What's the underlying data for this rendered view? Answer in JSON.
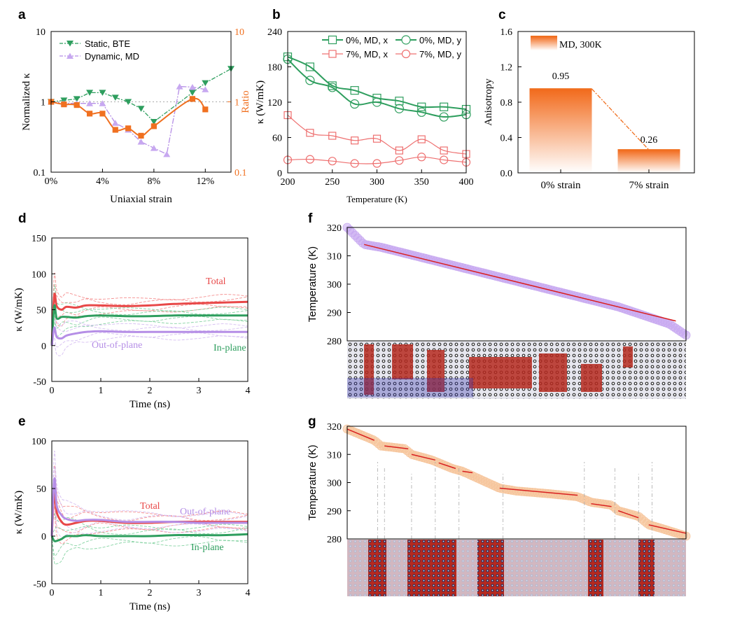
{
  "colors": {
    "green": "#2e9e5e",
    "orange": "#f07020",
    "purple": "#b58ee6",
    "red": "#e84848",
    "pink": "#ee7070",
    "lavender": "#c7a8f0",
    "peach": "#f6c49a",
    "darkred": "#d82020"
  },
  "chart_data": [
    {
      "panel": "a",
      "type": "line",
      "xlabel": "Uniaxial strain",
      "ylabel": "Normalized κ",
      "y2label": "Ratio",
      "xlim": [
        0,
        14
      ],
      "ylim": [
        0.1,
        10
      ],
      "y2lim": [
        0.1,
        10
      ],
      "yscale": "log",
      "x_ticks": [
        "0%",
        "4%",
        "8%",
        "12%"
      ],
      "y_ticks": [
        "0.1",
        "1",
        "10"
      ],
      "y2_ticks": [
        "0.1",
        "1",
        "10"
      ],
      "legend_position": "top-left",
      "series": [
        {
          "name": "Static, BTE",
          "x": [
            0,
            1,
            2,
            3,
            4,
            5,
            6,
            7,
            8,
            11,
            12,
            14
          ],
          "y": [
            1.0,
            1.05,
            1.1,
            1.35,
            1.35,
            1.15,
            1.0,
            0.8,
            0.52,
            1.35,
            1.85,
            2.95
          ]
        },
        {
          "name": "Dynamic, MD",
          "x": [
            0,
            1,
            2,
            3,
            4,
            5,
            6,
            7,
            8,
            9,
            10,
            11,
            12
          ],
          "y": [
            1.0,
            0.95,
            0.95,
            0.95,
            0.95,
            0.5,
            0.4,
            0.27,
            0.22,
            0.18,
            1.65,
            1.62,
            1.5
          ]
        },
        {
          "name": "Ratio",
          "x": [
            0,
            1,
            2,
            3,
            4,
            5,
            6,
            7,
            8,
            11,
            12
          ],
          "y": [
            1.0,
            0.92,
            0.9,
            0.68,
            0.68,
            0.4,
            0.42,
            0.33,
            0.45,
            1.1,
            0.78
          ]
        }
      ]
    },
    {
      "panel": "b",
      "type": "line",
      "xlabel": "Temperature (K)",
      "ylabel": "κ (W/mK)",
      "xlim": [
        200,
        400
      ],
      "ylim": [
        0,
        240
      ],
      "x_ticks": [
        "200",
        "250",
        "300",
        "350",
        "400"
      ],
      "y_ticks": [
        "0",
        "60",
        "120",
        "180",
        "240"
      ],
      "legend_position": "top-right",
      "x": [
        200,
        225,
        250,
        275,
        300,
        325,
        350,
        375,
        400
      ],
      "series": [
        {
          "name": "0%, MD, x",
          "y": [
            197,
            180,
            148,
            140,
            127,
            122,
            112,
            112,
            108
          ]
        },
        {
          "name": "0%, MD, y",
          "y": [
            193,
            157,
            145,
            117,
            120,
            109,
            103,
            95,
            99
          ]
        },
        {
          "name": "7%, MD, x",
          "y": [
            98,
            68,
            63,
            55,
            58,
            38,
            57,
            38,
            32
          ]
        },
        {
          "name": "7%, MD, y",
          "y": [
            22,
            23,
            20,
            16,
            16,
            21,
            27,
            22,
            18
          ]
        }
      ]
    },
    {
      "panel": "c",
      "type": "bar",
      "ylabel": "Anisotropy",
      "ylim": [
        0,
        1.6
      ],
      "y_ticks": [
        "0.0",
        "0.4",
        "0.8",
        "1.2",
        "1.6"
      ],
      "categories": [
        "0% strain",
        "7% strain"
      ],
      "values": [
        0.95,
        0.26
      ],
      "value_labels": [
        "0.95",
        "0.26"
      ],
      "legend": "MD, 300K",
      "legend_position": "top-left"
    },
    {
      "panel": "d",
      "type": "line",
      "xlabel": "Time (ns)",
      "ylabel": "κ (W/mK)",
      "xlim": [
        0,
        4
      ],
      "ylim": [
        -50,
        150
      ],
      "x_ticks": [
        "0",
        "1",
        "2",
        "3",
        "4"
      ],
      "y_ticks": [
        "-50",
        "0",
        "50",
        "100",
        "150"
      ],
      "annotations": [
        "Total",
        "Out-of-plane",
        "In-plane"
      ],
      "series": [
        {
          "name": "Total",
          "x": [
            0,
            0.05,
            0.1,
            0.2,
            0.3,
            0.5,
            0.7,
            1,
            1.5,
            2,
            2.5,
            3,
            3.5,
            4
          ],
          "y": [
            0,
            70,
            55,
            50,
            54,
            53,
            56,
            56,
            55,
            56,
            58,
            59,
            60,
            61
          ]
        },
        {
          "name": "In-plane",
          "x": [
            0,
            0.05,
            0.1,
            0.2,
            0.3,
            0.5,
            0.7,
            1,
            1.5,
            2,
            2.5,
            3,
            3.5,
            4
          ],
          "y": [
            0,
            55,
            38,
            40,
            40,
            39,
            41,
            42,
            41,
            41,
            42,
            42,
            42,
            42
          ]
        },
        {
          "name": "Out-of-plane",
          "x": [
            0,
            0.05,
            0.1,
            0.2,
            0.3,
            0.5,
            0.7,
            1,
            1.5,
            2,
            2.5,
            3,
            3.5,
            4
          ],
          "y": [
            0,
            25,
            12,
            10,
            14,
            17,
            19,
            20,
            19,
            19,
            19,
            19,
            19,
            19
          ]
        }
      ]
    },
    {
      "panel": "e",
      "type": "line",
      "xlabel": "Time (ns)",
      "ylabel": "κ (W/mK)",
      "xlim": [
        0,
        4
      ],
      "ylim": [
        -50,
        100
      ],
      "x_ticks": [
        "0",
        "1",
        "2",
        "3",
        "4"
      ],
      "y_ticks": [
        "-50",
        "0",
        "50",
        "100"
      ],
      "annotations": [
        "Total",
        "Out-of-plane",
        "In-plane"
      ],
      "series": [
        {
          "name": "Total",
          "x": [
            0,
            0.05,
            0.1,
            0.2,
            0.3,
            0.5,
            0.7,
            1,
            1.5,
            2,
            2.5,
            3,
            3.5,
            4
          ],
          "y": [
            0,
            45,
            25,
            15,
            12,
            14,
            16,
            16,
            14,
            14,
            15,
            15,
            15,
            15
          ]
        },
        {
          "name": "Out-of-plane",
          "x": [
            0,
            0.05,
            0.1,
            0.2,
            0.3,
            0.5,
            0.7,
            1,
            1.5,
            2,
            2.5,
            3,
            3.5,
            4
          ],
          "y": [
            0,
            60,
            32,
            22,
            18,
            16,
            17,
            17,
            15,
            15,
            15,
            14,
            14,
            14
          ]
        },
        {
          "name": "In-plane",
          "x": [
            0,
            0.05,
            0.1,
            0.2,
            0.3,
            0.5,
            0.7,
            1,
            1.5,
            2,
            2.5,
            3,
            3.5,
            4
          ],
          "y": [
            0,
            -5,
            -5,
            -3,
            0,
            0,
            1,
            0,
            0,
            0,
            1,
            1,
            1,
            2
          ]
        }
      ]
    },
    {
      "panel": "f",
      "type": "scatter",
      "ylabel": "Temperature (K)",
      "ylim": [
        280,
        320
      ],
      "y_ticks": [
        "280",
        "290",
        "300",
        "310",
        "320"
      ],
      "x": [
        0,
        0.05,
        0.1,
        0.2,
        0.3,
        0.4,
        0.5,
        0.6,
        0.7,
        0.8,
        0.9,
        0.95,
        1.0
      ],
      "y": [
        320,
        314,
        313,
        310,
        307,
        304,
        301,
        298,
        295,
        292,
        288,
        286,
        282
      ],
      "fit": {
        "x": [
          0.05,
          0.97
        ],
        "y": [
          314,
          287
        ]
      }
    },
    {
      "panel": "g",
      "type": "scatter",
      "ylabel": "Temperature (K)",
      "ylim": [
        280,
        320
      ],
      "y_ticks": [
        "280",
        "290",
        "300",
        "310",
        "320"
      ],
      "x": [
        0,
        0.08,
        0.1,
        0.17,
        0.19,
        0.25,
        0.27,
        0.31,
        0.34,
        0.45,
        0.5,
        0.6,
        0.68,
        0.72,
        0.78,
        0.8,
        0.86,
        0.89,
        0.92,
        1.0
      ],
      "y": [
        319,
        315,
        313,
        312,
        310,
        308,
        307,
        305,
        304,
        298,
        297,
        296,
        295,
        293,
        292,
        290,
        288,
        285,
        284,
        281
      ],
      "fit_segments": [
        {
          "x": [
            0.0,
            0.08
          ],
          "y": [
            319,
            315
          ]
        },
        {
          "x": [
            0.11,
            0.18
          ],
          "y": [
            313,
            312
          ]
        },
        {
          "x": [
            0.19,
            0.26
          ],
          "y": [
            310,
            308
          ]
        },
        {
          "x": [
            0.27,
            0.32
          ],
          "y": [
            307,
            305
          ]
        },
        {
          "x": [
            0.34,
            0.37
          ],
          "y": [
            304,
            303.5
          ]
        },
        {
          "x": [
            0.45,
            0.68
          ],
          "y": [
            298,
            295.5
          ]
        },
        {
          "x": [
            0.72,
            0.78
          ],
          "y": [
            292.5,
            291.5
          ]
        },
        {
          "x": [
            0.8,
            0.86
          ],
          "y": [
            290,
            287.5
          ]
        },
        {
          "x": [
            0.89,
            1.0
          ],
          "y": [
            285,
            282
          ]
        }
      ],
      "dividers_x": [
        0.09,
        0.11,
        0.19,
        0.26,
        0.33,
        0.46,
        0.7,
        0.79,
        0.86,
        0.9
      ]
    }
  ]
}
